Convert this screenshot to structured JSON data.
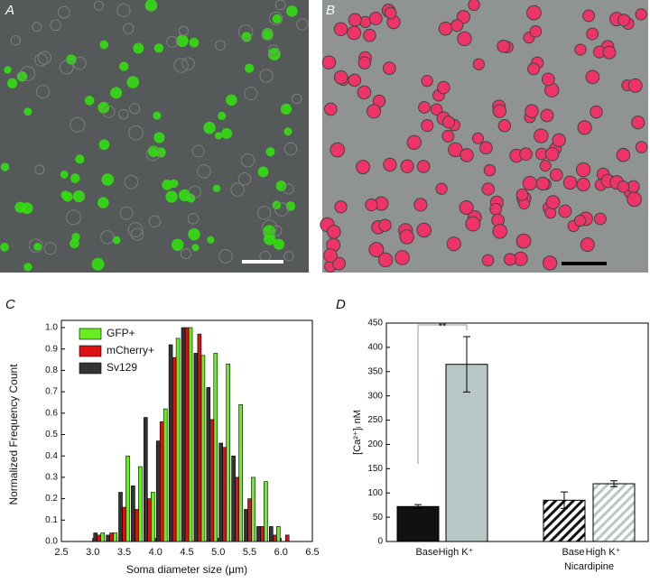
{
  "images": [
    {
      "label": "A"
    },
    {
      "label": "B"
    }
  ],
  "chart_data": [
    {
      "type": "bar",
      "label": "C",
      "xlabel": "Soma diameter size (µm)",
      "ylabel": "Normalized Frequency Count",
      "x": [
        3.1,
        3.3,
        3.5,
        3.7,
        3.9,
        4.1,
        4.3,
        4.5,
        4.7,
        4.9,
        5.1,
        5.3,
        5.5,
        5.7,
        5.9,
        6.1
      ],
      "series": [
        {
          "name": "GFP+",
          "color": "#66ee22",
          "values": [
            0.04,
            0.04,
            0.4,
            0.35,
            0.23,
            0.62,
            0.95,
            1.0,
            0.87,
            0.88,
            0.83,
            0.64,
            0.3,
            0.28,
            0.07,
            null
          ]
        },
        {
          "name": "mCherry+",
          "color": "#dd1111",
          "values": [
            0.03,
            0.04,
            0.16,
            0.15,
            0.2,
            0.56,
            0.86,
            1.0,
            0.97,
            0.57,
            0.44,
            0.3,
            0.2,
            0.07,
            0.03,
            0.03
          ]
        },
        {
          "name": "Sv129",
          "color": "#333333",
          "values": [
            0.04,
            0.03,
            0.23,
            0.26,
            0.58,
            0.47,
            0.92,
            1.0,
            0.88,
            0.72,
            0.46,
            0.4,
            0.15,
            0.07,
            0.07,
            null
          ]
        }
      ],
      "xlim": [
        2.5,
        6.5
      ],
      "xticks": [
        2.5,
        {
          "value": 3,
          "label": "3.0"
        },
        3.5,
        {
          "value": 4,
          "label": "4.0"
        },
        4.5,
        {
          "value": 5,
          "label": "5.0"
        },
        5.5,
        {
          "value": 6,
          "label": "6.0"
        },
        6.5
      ],
      "ylim": [
        0,
        1
      ],
      "yticks": [
        {
          "value": 0,
          "label": "0.0"
        },
        0.1,
        0.2,
        0.3,
        0.4,
        0.5,
        0.6,
        0.7,
        0.8,
        0.9,
        {
          "value": 1,
          "label": "1.0"
        }
      ],
      "legend": "upper left"
    },
    {
      "type": "bar",
      "label": "D",
      "ylabel": "[Ca²⁺]ᵢ nM",
      "categories": [
        "Base",
        "High K⁺",
        "Base",
        "High K⁺"
      ],
      "group_label": "Nicardipine",
      "values": [
        72,
        365,
        85,
        119
      ],
      "errors": [
        4,
        57,
        17,
        6
      ],
      "colors": [
        "#111111",
        "#b9c6c6",
        "#111111",
        "#b9c6c6"
      ],
      "hatched": [
        false,
        false,
        true,
        true
      ],
      "significance": "**",
      "ylim": [
        0,
        450
      ],
      "yticks": [
        0,
        50,
        100,
        150,
        200,
        250,
        300,
        350,
        400,
        450
      ]
    }
  ]
}
